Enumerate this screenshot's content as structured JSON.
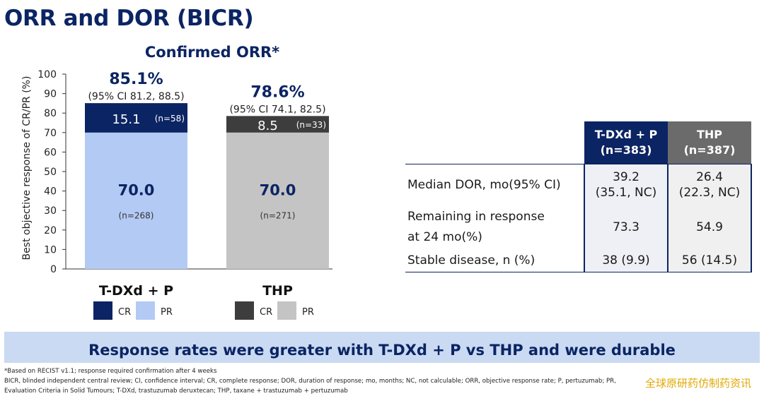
{
  "slide": {
    "title": "ORR and DOR (BICR)",
    "banner": "Response rates were greater with T-DXd + P vs THP and were durable",
    "footnotes": [
      "*Based on RECIST v1.1; response required confirmation after 4 weeks",
      "BICR, blinded independent central review; CI, confidence interval; CR, complete response; DOR, duration of response; mo, months; NC, not calculable; ORR, objective response rate; P, pertuzumab; PR,",
      "Evaluation Criteria in Solid Tumours; T-DXd, trastuzumab deruxtecan; THP, taxane + trastuzumab + pertuzumab"
    ],
    "watermark": "全球原研药仿制药资讯"
  },
  "chart_data": {
    "type": "bar",
    "stacked": true,
    "title": "Confirmed ORR*",
    "ylabel": "Best objective response of CR/PR (%)",
    "ylim": [
      0,
      100
    ],
    "yticks": [
      0,
      10,
      20,
      30,
      40,
      50,
      60,
      70,
      80,
      90,
      100
    ],
    "categories": [
      "T-DXd + P",
      "THP"
    ],
    "totals": [
      {
        "label": "85.1%",
        "ci": "(95% CI 81.2, 88.5)"
      },
      {
        "label": "78.6%",
        "ci": "(95% CI 74.1, 82.5)"
      }
    ],
    "series": [
      {
        "name": "PR",
        "values": [
          70.0,
          70.0
        ],
        "labels": [
          "70.0",
          "70.0"
        ],
        "n": [
          "(n=268)",
          "(n=271)"
        ],
        "colors": [
          "#b3caf4",
          "#c4c4c4"
        ]
      },
      {
        "name": "CR",
        "values": [
          15.1,
          8.5
        ],
        "labels": [
          "15.1",
          "8.5"
        ],
        "n": [
          "(n=58)",
          "(n=33)"
        ],
        "colors": [
          "#0b2463",
          "#3d3d3d"
        ]
      }
    ],
    "legends": [
      {
        "group": "T-DXd + P",
        "items": [
          {
            "name": "CR",
            "color": "#0b2463"
          },
          {
            "name": "PR",
            "color": "#b3caf4"
          }
        ]
      },
      {
        "group": "THP",
        "items": [
          {
            "name": "CR",
            "color": "#3d3d3d"
          },
          {
            "name": "PR",
            "color": "#c4c4c4"
          }
        ]
      }
    ]
  },
  "dor_table": {
    "headers": [
      {
        "line1": "T-DXd + P",
        "line2": "(n=383)"
      },
      {
        "line1": "THP",
        "line2": "(n=387)"
      }
    ],
    "rows": [
      {
        "label": "Median DOR, mo(95% CI)",
        "label2": "",
        "v1": "39.2",
        "v1b": "(35.1, NC)",
        "v2": "26.4",
        "v2b": "(22.3, NC)"
      },
      {
        "label": "Remaining in response",
        "label2": "at 24 mo(%)",
        "v1": "73.3",
        "v1b": "",
        "v2": "54.9",
        "v2b": ""
      },
      {
        "label": "Stable disease, n (%)",
        "label2": "",
        "v1": "38 (9.9)",
        "v1b": "",
        "v2": "56 (14.5)",
        "v2b": ""
      }
    ]
  }
}
